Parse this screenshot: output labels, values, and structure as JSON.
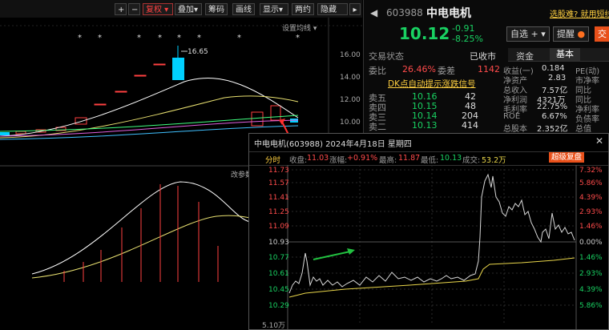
{
  "toolbar": {
    "plus": "+",
    "minus": "−",
    "fuquan": "复权",
    "diejia": "叠加",
    "choumа": "筹码",
    "huaxian": "画线",
    "xianshi": "显示",
    "liangyue": "两约",
    "yincang": "隐藏",
    "settings_label": "设置均线"
  },
  "kline": {
    "price_label": "16.65",
    "axis": [
      "16.00",
      "14.00",
      "12.00",
      "10.00"
    ],
    "indicator_label": "改参数"
  },
  "stock": {
    "code": "603988",
    "name": "中电电机",
    "price": "10.12",
    "change": "-0.91",
    "change_pct": "-8.25%",
    "zixuan_label": "自选",
    "tixing_label": "提醒",
    "trade_label": "交",
    "link_label": "选股难? 就用短线"
  },
  "trade_status": {
    "label": "交易状态",
    "value": "已收市",
    "webi_label": "委比",
    "webi_value": "26.46%",
    "weicha_label": "委差",
    "weicha_value": "1142",
    "signal_text": "DK点自动提示涨跌信号"
  },
  "orderbook": [
    {
      "label": "卖五",
      "price": "10.16",
      "vol": "42"
    },
    {
      "label": "卖四",
      "price": "10.15",
      "vol": "48"
    },
    {
      "label": "卖三",
      "price": "10.14",
      "vol": "204"
    },
    {
      "label": "卖二",
      "price": "10.13",
      "vol": "414"
    }
  ],
  "tabs": {
    "zijin": "资金",
    "jiben": "基本"
  },
  "fundamentals": [
    {
      "label": "收益(一)",
      "value": "0.184",
      "label2": "PE(动)"
    },
    {
      "label": "净资产",
      "value": "2.83",
      "label2": "市净率"
    },
    {
      "label": "总收入",
      "value": "7.57亿",
      "label2": "同比"
    },
    {
      "label": "净利润",
      "value": "4321万",
      "label2": "同比"
    },
    {
      "label": "毛利率",
      "value": "22.75%",
      "label2": "净利率"
    },
    {
      "label": "ROE",
      "value": "6.67%",
      "label2": "负债率"
    },
    {
      "label": "总股本",
      "value": "2.352亿",
      "label2": "总值"
    }
  ],
  "popup": {
    "title": "中电电机(603988) 2024年4月18日 星期四",
    "fenshi": "分时",
    "shoupan_label": "收盘:",
    "shoupan_value": "11.03",
    "zhangfu_label": "涨幅:",
    "zhangfu_value": "+0.91%",
    "zuigao_label": "最高:",
    "zuigao_value": "11.87",
    "zuidi_label": "最低:",
    "zuidi_value": "10.13",
    "chengjiao_label": "成交:",
    "chengjiao_value": "53.2万",
    "chaoji_label": "超级复盘",
    "left_axis": [
      "11.73",
      "11.57",
      "11.41",
      "11.25",
      "11.09",
      "10.93",
      "10.77",
      "10.61",
      "10.45",
      "10.29"
    ],
    "right_axis": [
      "7.32%",
      "5.86%",
      "4.39%",
      "2.93%",
      "1.46%",
      "0.00%",
      "1.46%",
      "2.93%",
      "4.39%",
      "5.86%"
    ],
    "vol_label": "5.10万",
    "close_icon": "close-icon"
  }
}
